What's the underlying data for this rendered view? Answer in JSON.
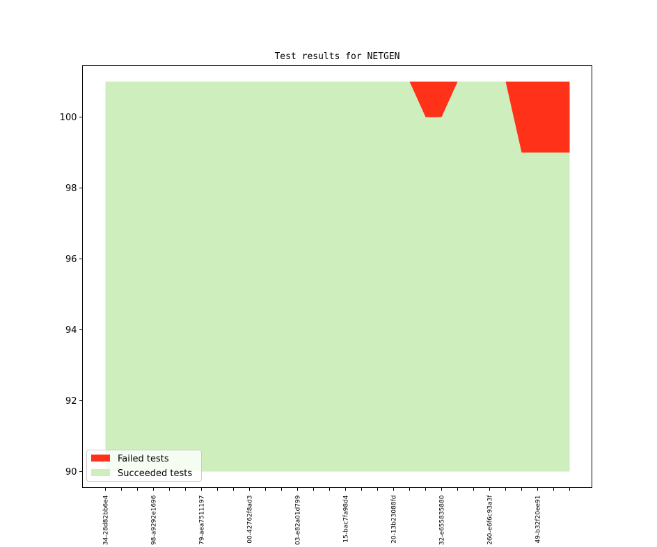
{
  "chart_data": {
    "type": "area",
    "title": "Test results for NETGEN",
    "xlabel": "",
    "ylabel": "",
    "ylim": [
      89.55,
      101.45
    ],
    "yticks": [
      90,
      92,
      94,
      96,
      98,
      100
    ],
    "n_points": 30,
    "tick_labels": [
      "34-28d82bb6e4",
      "",
      "",
      "98-a9292e1696",
      "",
      "",
      "79-aea7511197",
      "",
      "",
      "00-42762f8ad3",
      "",
      "",
      "03-e82a01d799",
      "",
      "",
      "15-bac7fa98d4",
      "",
      "",
      "20-13b23088fd",
      "",
      "",
      "32-e655835880",
      "",
      "",
      "260-e6f6c93a3f",
      "",
      "",
      "49-b32f20ee91",
      "",
      ""
    ],
    "series": [
      {
        "name": "Failed tests",
        "color": "#ff3118",
        "lower": [
          101,
          101,
          101,
          101,
          101,
          101,
          101,
          101,
          101,
          101,
          101,
          101,
          101,
          101,
          101,
          101,
          101,
          101,
          101,
          101,
          100,
          100,
          101,
          101,
          101,
          101,
          99,
          99,
          99,
          99
        ],
        "upper": [
          101,
          101,
          101,
          101,
          101,
          101,
          101,
          101,
          101,
          101,
          101,
          101,
          101,
          101,
          101,
          101,
          101,
          101,
          101,
          101,
          101,
          101,
          101,
          101,
          101,
          101,
          101,
          101,
          101,
          101
        ]
      },
      {
        "name": "Succeeded tests",
        "color": "#ceeebd",
        "lower": [
          90,
          90,
          90,
          90,
          90,
          90,
          90,
          90,
          90,
          90,
          90,
          90,
          90,
          90,
          90,
          90,
          90,
          90,
          90,
          90,
          90,
          90,
          90,
          90,
          90,
          90,
          90,
          90,
          90,
          90
        ],
        "upper": [
          101,
          101,
          101,
          101,
          101,
          101,
          101,
          101,
          101,
          101,
          101,
          101,
          101,
          101,
          101,
          101,
          101,
          101,
          101,
          101,
          100,
          100,
          101,
          101,
          101,
          101,
          99,
          99,
          99,
          99
        ]
      }
    ],
    "legend_position": "lower-left"
  }
}
